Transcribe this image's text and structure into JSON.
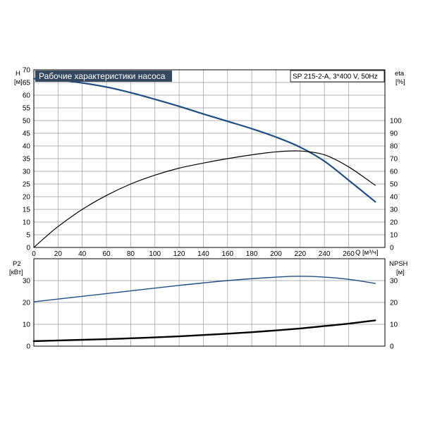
{
  "chart_data": [
    {
      "type": "line",
      "title": "Рабочие характеристики насоса",
      "info": "SP 215-2-A, 3*400 V, 50Hz",
      "ylabel_left": [
        "H",
        "[м]"
      ],
      "ylabel_right": [
        "eta",
        "[%]"
      ],
      "xlabel": "Q [м³/ч]",
      "xlim": [
        0,
        290
      ],
      "ylim_left": [
        0,
        70
      ],
      "ylim_right": [
        0,
        140
      ],
      "x_ticks": [
        0,
        20,
        40,
        60,
        80,
        100,
        120,
        140,
        160,
        180,
        200,
        220,
        240,
        260
      ],
      "y_ticks_left": [
        0,
        5,
        10,
        15,
        20,
        25,
        30,
        35,
        40,
        45,
        50,
        55,
        60,
        65,
        70
      ],
      "y_ticks_right": [
        0,
        10,
        20,
        30,
        40,
        50,
        60,
        70,
        80,
        90,
        100
      ],
      "grid": true,
      "series": [
        {
          "color": "#1f4e85",
          "axis": "left",
          "x": [
            0,
            20,
            40,
            60,
            80,
            100,
            120,
            140,
            160,
            180,
            200,
            220,
            240,
            260,
            282
          ],
          "values": [
            66.5,
            66,
            64.8,
            63.2,
            61,
            58.4,
            55.6,
            52.6,
            49.7,
            46.8,
            43.5,
            39.5,
            34,
            26.5,
            18
          ]
        },
        {
          "color": "#000000",
          "axis": "right",
          "x": [
            0,
            10,
            20,
            40,
            60,
            80,
            100,
            120,
            140,
            160,
            180,
            200,
            220,
            240,
            260,
            282
          ],
          "values": [
            0,
            8.5,
            16.5,
            30,
            41,
            50,
            57,
            62.5,
            66.5,
            70,
            73,
            75.3,
            76,
            73,
            63.5,
            49
          ]
        }
      ]
    },
    {
      "type": "line",
      "ylabel_left": [
        "P2",
        "[кВт]"
      ],
      "ylabel_right": [
        "NPSH",
        "[м]"
      ],
      "xlim": [
        0,
        290
      ],
      "ylim_left": [
        0,
        40
      ],
      "ylim_right": [
        0,
        40
      ],
      "y_ticks_left": [
        0,
        10,
        20,
        30
      ],
      "y_ticks_right": [
        0,
        10,
        20,
        30
      ],
      "grid": true,
      "series": [
        {
          "color": "#1f4e85",
          "axis": "left",
          "x": [
            0,
            40,
            80,
            120,
            160,
            200,
            220,
            240,
            260,
            282
          ],
          "values": [
            20.3,
            22.8,
            25.3,
            27.8,
            30,
            31.6,
            32,
            31.6,
            30.6,
            28.7
          ]
        },
        {
          "color": "#000000",
          "axis": "right",
          "x": [
            0,
            20,
            40,
            60,
            80,
            100,
            120,
            140,
            160,
            180,
            200,
            220,
            240,
            260,
            282
          ],
          "values": [
            2.3,
            2.6,
            2.9,
            3.2,
            3.6,
            4.0,
            4.5,
            5.1,
            5.7,
            6.4,
            7.2,
            8.1,
            9.2,
            10.3,
            11.8
          ]
        }
      ]
    }
  ]
}
